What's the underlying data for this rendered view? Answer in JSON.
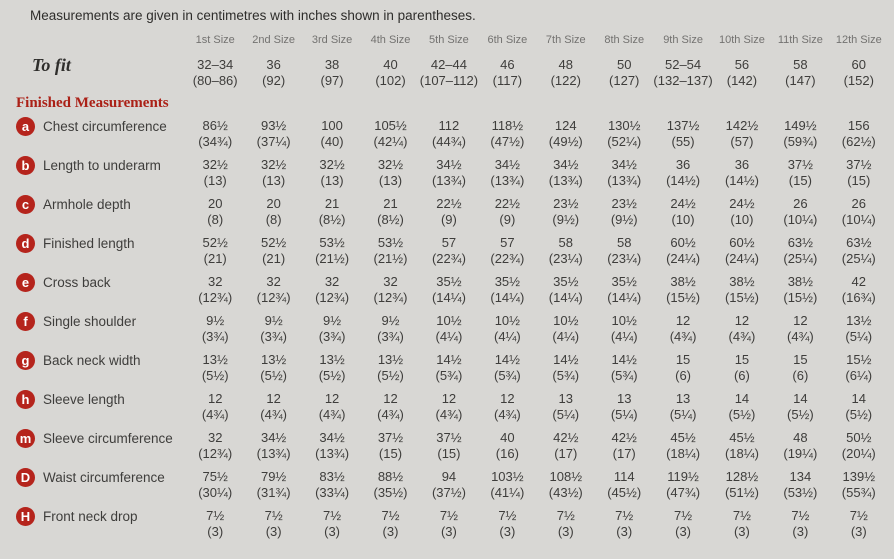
{
  "note": "Measurements are given in centimetres with inches shown in parentheses.",
  "colors": {
    "background": "#d8d7d4",
    "accent_red": "#b5241c",
    "heading_red": "#ab2117",
    "text": "#3e3d3b",
    "size_header_gray": "#737270"
  },
  "size_headers": [
    "1st Size",
    "2nd Size",
    "3rd Size",
    "4th Size",
    "5th Size",
    "6th Size",
    "7th Size",
    "8th Size",
    "9th Size",
    "10th Size",
    "11th Size",
    "12th Size"
  ],
  "to_fit": {
    "label": "To fit",
    "cm": [
      "32–34",
      "36",
      "38",
      "40",
      "42–44",
      "46",
      "48",
      "50",
      "52–54",
      "56",
      "58",
      "60"
    ],
    "in": [
      "(80–86)",
      "(92)",
      "(97)",
      "(102)",
      "(107–112)",
      "(117)",
      "(122)",
      "(127)",
      "(132–137)",
      "(142)",
      "(147)",
      "(152)"
    ]
  },
  "section_title": "Finished Measurements",
  "rows": [
    {
      "key": "a",
      "label": "Chest circumference",
      "cm": [
        "86½",
        "93½",
        "100",
        "105½",
        "112",
        "118½",
        "124",
        "130½",
        "137½",
        "142½",
        "149½",
        "156"
      ],
      "in": [
        "(34¾)",
        "(37¼)",
        "(40)",
        "(42¼)",
        "(44¾)",
        "(47½)",
        "(49½)",
        "(52¼)",
        "(55)",
        "(57)",
        "(59¾)",
        "(62½)"
      ]
    },
    {
      "key": "b",
      "label": "Length to underarm",
      "cm": [
        "32½",
        "32½",
        "32½",
        "32½",
        "34½",
        "34½",
        "34½",
        "34½",
        "36",
        "36",
        "37½",
        "37½"
      ],
      "in": [
        "(13)",
        "(13)",
        "(13)",
        "(13)",
        "(13¾)",
        "(13¾)",
        "(13¾)",
        "(13¾)",
        "(14½)",
        "(14½)",
        "(15)",
        "(15)"
      ]
    },
    {
      "key": "c",
      "label": "Armhole depth",
      "cm": [
        "20",
        "20",
        "21",
        "21",
        "22½",
        "22½",
        "23½",
        "23½",
        "24½",
        "24½",
        "26",
        "26"
      ],
      "in": [
        "(8)",
        "(8)",
        "(8½)",
        "(8½)",
        "(9)",
        "(9)",
        "(9½)",
        "(9½)",
        "(10)",
        "(10)",
        "(10¼)",
        "(10¼)"
      ]
    },
    {
      "key": "d",
      "label": "Finished length",
      "cm": [
        "52½",
        "52½",
        "53½",
        "53½",
        "57",
        "57",
        "58",
        "58",
        "60½",
        "60½",
        "63½",
        "63½"
      ],
      "in": [
        "(21)",
        "(21)",
        "(21½)",
        "(21½)",
        "(22¾)",
        "(22¾)",
        "(23¼)",
        "(23¼)",
        "(24¼)",
        "(24¼)",
        "(25¼)",
        "(25¼)"
      ]
    },
    {
      "key": "e",
      "label": "Cross back",
      "cm": [
        "32",
        "32",
        "32",
        "32",
        "35½",
        "35½",
        "35½",
        "35½",
        "38½",
        "38½",
        "38½",
        "42"
      ],
      "in": [
        "(12¾)",
        "(12¾)",
        "(12¾)",
        "(12¾)",
        "(14¼)",
        "(14¼)",
        "(14¼)",
        "(14¼)",
        "(15½)",
        "(15½)",
        "(15½)",
        "(16¾)"
      ]
    },
    {
      "key": "f",
      "label": "Single shoulder",
      "cm": [
        "9½",
        "9½",
        "9½",
        "9½",
        "10½",
        "10½",
        "10½",
        "10½",
        "12",
        "12",
        "12",
        "13½"
      ],
      "in": [
        "(3¾)",
        "(3¾)",
        "(3¾)",
        "(3¾)",
        "(4¼)",
        "(4¼)",
        "(4¼)",
        "(4¼)",
        "(4¾)",
        "(4¾)",
        "(4¾)",
        "(5¼)"
      ]
    },
    {
      "key": "g",
      "label": "Back neck width",
      "cm": [
        "13½",
        "13½",
        "13½",
        "13½",
        "14½",
        "14½",
        "14½",
        "14½",
        "15",
        "15",
        "15",
        "15½"
      ],
      "in": [
        "(5½)",
        "(5½)",
        "(5½)",
        "(5½)",
        "(5¾)",
        "(5¾)",
        "(5¾)",
        "(5¾)",
        "(6)",
        "(6)",
        "(6)",
        "(6¼)"
      ]
    },
    {
      "key": "h",
      "label": "Sleeve length",
      "cm": [
        "12",
        "12",
        "12",
        "12",
        "12",
        "12",
        "13",
        "13",
        "13",
        "14",
        "14",
        "14"
      ],
      "in": [
        "(4¾)",
        "(4¾)",
        "(4¾)",
        "(4¾)",
        "(4¾)",
        "(4¾)",
        "(5¼)",
        "(5¼)",
        "(5¼)",
        "(5½)",
        "(5½)",
        "(5½)"
      ]
    },
    {
      "key": "m",
      "label": "Sleeve circumference",
      "cm": [
        "32",
        "34½",
        "34½",
        "37½",
        "37½",
        "40",
        "42½",
        "42½",
        "45½",
        "45½",
        "48",
        "50½"
      ],
      "in": [
        "(12¾)",
        "(13¾)",
        "(13¾)",
        "(15)",
        "(15)",
        "(16)",
        "(17)",
        "(17)",
        "(18¼)",
        "(18¼)",
        "(19¼)",
        "(20¼)"
      ]
    },
    {
      "key": "D",
      "label": "Waist circumference",
      "cm": [
        "75½",
        "79½",
        "83½",
        "88½",
        "94",
        "103½",
        "108½",
        "114",
        "119½",
        "128½",
        "134",
        "139½"
      ],
      "in": [
        "(30¼)",
        "(31¾)",
        "(33¼)",
        "(35½)",
        "(37½)",
        "(41¼)",
        "(43½)",
        "(45½)",
        "(47¾)",
        "(51½)",
        "(53½)",
        "(55¾)"
      ]
    },
    {
      "key": "H",
      "label": "Front neck drop",
      "cm": [
        "7½",
        "7½",
        "7½",
        "7½",
        "7½",
        "7½",
        "7½",
        "7½",
        "7½",
        "7½",
        "7½",
        "7½"
      ],
      "in": [
        "(3)",
        "(3)",
        "(3)",
        "(3)",
        "(3)",
        "(3)",
        "(3)",
        "(3)",
        "(3)",
        "(3)",
        "(3)",
        "(3)"
      ]
    }
  ]
}
